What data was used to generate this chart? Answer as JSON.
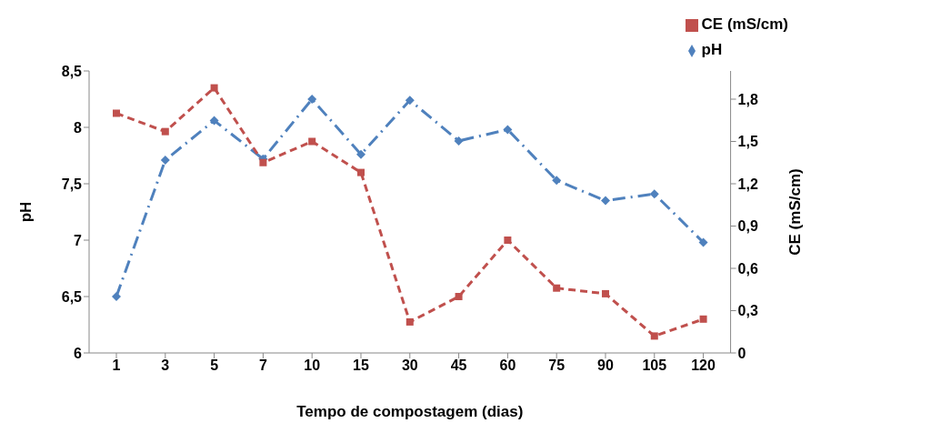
{
  "chart_data": {
    "type": "line",
    "xlabel": "Tempo de compostagem (dias)",
    "ylabel": "pH",
    "y2label": "CE (mS/cm)",
    "categories": [
      "1",
      "3",
      "5",
      "7",
      "10",
      "15",
      "30",
      "45",
      "60",
      "75",
      "90",
      "105",
      "120"
    ],
    "series": [
      {
        "name": "pH",
        "color": "#4f81bd",
        "marker": "diamond",
        "line_style": "dashdot",
        "values": [
          6.5,
          7.71,
          8.06,
          7.72,
          8.25,
          7.76,
          8.24,
          7.88,
          7.98,
          7.53,
          7.35,
          7.41,
          6.98
        ]
      },
      {
        "name": "CE (mS/cm)",
        "color": "#c0504d",
        "marker": "square",
        "line_style": "dashed",
        "axis": "y2",
        "values": [
          1.7,
          1.57,
          1.88,
          1.35,
          1.5,
          1.28,
          0.22,
          0.4,
          0.8,
          0.46,
          0.42,
          0.12,
          0.24
        ]
      }
    ],
    "ylim": [
      6,
      8.5
    ],
    "yticks": [
      {
        "value": 6,
        "label": "6"
      },
      {
        "value": 6.5,
        "label": "6,5"
      },
      {
        "value": 7,
        "label": "7"
      },
      {
        "value": 7.5,
        "label": "7,5"
      },
      {
        "value": 8,
        "label": "8"
      },
      {
        "value": 8.5,
        "label": "8,5"
      }
    ],
    "y2lim": [
      0,
      2
    ],
    "y2ticks": [
      {
        "value": 0,
        "label": "0"
      },
      {
        "value": 0.3,
        "label": "0,3"
      },
      {
        "value": 0.6,
        "label": "0,6"
      },
      {
        "value": 0.9,
        "label": "0,9"
      },
      {
        "value": 1.2,
        "label": "1,2"
      },
      {
        "value": 1.5,
        "label": "1,5"
      },
      {
        "value": 1.8,
        "label": "1,8"
      }
    ],
    "grid": false,
    "legend": "top right"
  }
}
